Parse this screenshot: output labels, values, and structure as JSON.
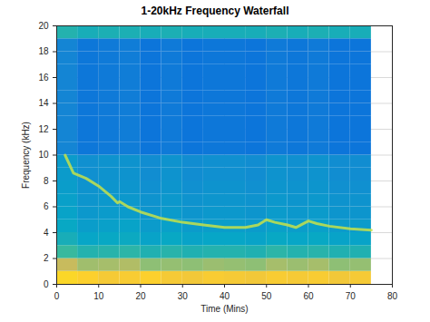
{
  "chart_data": {
    "type": "heatmap",
    "title": "1-20kHz Frequency Waterfall",
    "x_label": "Time (Mins)",
    "y_label": "Frequency (kHz)",
    "xlim": [
      0,
      80
    ],
    "ylim": [
      0,
      20
    ],
    "xticks": [
      0,
      10,
      20,
      30,
      40,
      50,
      60,
      70,
      80
    ],
    "yticks": [
      0,
      2,
      4,
      6,
      8,
      10,
      12,
      14,
      16,
      18,
      20
    ],
    "grid": true,
    "tick_labels": true,
    "x_bins": [
      0,
      5,
      10,
      15,
      20,
      25,
      30,
      35,
      40,
      45,
      50,
      55,
      60,
      65,
      70,
      75
    ],
    "y_bins": [
      0,
      1,
      2,
      3,
      4,
      5,
      6,
      7,
      8,
      9,
      10,
      11,
      12,
      13,
      14,
      15,
      16,
      17,
      18,
      19,
      20
    ],
    "color_range": [
      0,
      1
    ],
    "cells": [
      [
        0.9,
        0.88,
        0.85,
        0.86,
        0.88,
        0.85,
        0.84,
        0.86,
        0.85,
        0.84,
        0.86,
        0.85,
        0.86,
        0.84,
        0.85
      ],
      [
        0.72,
        0.65,
        0.66,
        0.68,
        0.62,
        0.63,
        0.62,
        0.64,
        0.63,
        0.62,
        0.66,
        0.64,
        0.66,
        0.62,
        0.63
      ],
      [
        0.5,
        0.45,
        0.46,
        0.47,
        0.44,
        0.46,
        0.44,
        0.45,
        0.45,
        0.44,
        0.47,
        0.45,
        0.46,
        0.44,
        0.44
      ],
      [
        0.42,
        0.37,
        0.38,
        0.39,
        0.36,
        0.38,
        0.36,
        0.37,
        0.37,
        0.36,
        0.38,
        0.37,
        0.38,
        0.36,
        0.36
      ],
      [
        0.38,
        0.34,
        0.35,
        0.36,
        0.33,
        0.35,
        0.33,
        0.34,
        0.34,
        0.33,
        0.35,
        0.34,
        0.35,
        0.33,
        0.33
      ],
      [
        0.36,
        0.32,
        0.33,
        0.33,
        0.31,
        0.33,
        0.31,
        0.32,
        0.32,
        0.31,
        0.33,
        0.32,
        0.33,
        0.31,
        0.31
      ],
      [
        0.35,
        0.31,
        0.32,
        0.32,
        0.3,
        0.32,
        0.3,
        0.31,
        0.31,
        0.3,
        0.32,
        0.31,
        0.32,
        0.3,
        0.3
      ],
      [
        0.34,
        0.3,
        0.31,
        0.31,
        0.29,
        0.31,
        0.29,
        0.3,
        0.3,
        0.29,
        0.31,
        0.3,
        0.31,
        0.29,
        0.29
      ],
      [
        0.33,
        0.29,
        0.3,
        0.3,
        0.28,
        0.3,
        0.28,
        0.29,
        0.29,
        0.28,
        0.3,
        0.29,
        0.3,
        0.28,
        0.28
      ],
      [
        0.33,
        0.29,
        0.3,
        0.3,
        0.28,
        0.3,
        0.28,
        0.29,
        0.29,
        0.28,
        0.3,
        0.29,
        0.3,
        0.28,
        0.28
      ],
      [
        0.25,
        0.2,
        0.21,
        0.22,
        0.19,
        0.21,
        0.19,
        0.2,
        0.2,
        0.19,
        0.21,
        0.2,
        0.21,
        0.19,
        0.19
      ],
      [
        0.25,
        0.2,
        0.21,
        0.22,
        0.19,
        0.21,
        0.19,
        0.2,
        0.2,
        0.19,
        0.21,
        0.2,
        0.21,
        0.19,
        0.19
      ],
      [
        0.25,
        0.2,
        0.21,
        0.22,
        0.19,
        0.21,
        0.19,
        0.2,
        0.2,
        0.19,
        0.21,
        0.2,
        0.21,
        0.19,
        0.19
      ],
      [
        0.25,
        0.2,
        0.21,
        0.22,
        0.19,
        0.21,
        0.19,
        0.2,
        0.2,
        0.19,
        0.21,
        0.2,
        0.21,
        0.19,
        0.19
      ],
      [
        0.25,
        0.2,
        0.21,
        0.22,
        0.19,
        0.21,
        0.19,
        0.2,
        0.2,
        0.19,
        0.21,
        0.2,
        0.21,
        0.19,
        0.19
      ],
      [
        0.25,
        0.2,
        0.21,
        0.22,
        0.19,
        0.21,
        0.19,
        0.2,
        0.2,
        0.19,
        0.21,
        0.2,
        0.21,
        0.19,
        0.19
      ],
      [
        0.25,
        0.2,
        0.21,
        0.22,
        0.19,
        0.21,
        0.19,
        0.2,
        0.2,
        0.19,
        0.21,
        0.2,
        0.21,
        0.19,
        0.19
      ],
      [
        0.25,
        0.2,
        0.21,
        0.22,
        0.19,
        0.21,
        0.19,
        0.2,
        0.2,
        0.19,
        0.21,
        0.2,
        0.21,
        0.19,
        0.19
      ],
      [
        0.25,
        0.2,
        0.21,
        0.22,
        0.19,
        0.21,
        0.19,
        0.2,
        0.2,
        0.19,
        0.21,
        0.2,
        0.21,
        0.19,
        0.19
      ],
      [
        0.45,
        0.42,
        0.43,
        0.43,
        0.42,
        0.43,
        0.42,
        0.42,
        0.42,
        0.42,
        0.43,
        0.42,
        0.43,
        0.42,
        0.42
      ]
    ],
    "series": [
      {
        "type": "line",
        "color": "#c6e24a",
        "x": [
          2,
          4,
          7,
          10,
          13,
          14.5,
          15,
          17,
          20,
          25,
          30,
          35,
          40,
          45,
          48,
          50,
          52,
          55,
          57,
          60,
          62,
          65,
          70,
          75
        ],
        "values": [
          10,
          8.6,
          8.2,
          7.6,
          6.8,
          6.3,
          6.4,
          6.0,
          5.6,
          5.1,
          4.8,
          4.6,
          4.4,
          4.4,
          4.6,
          5.0,
          4.8,
          4.6,
          4.4,
          4.9,
          4.7,
          4.5,
          4.3,
          4.2
        ]
      }
    ]
  }
}
